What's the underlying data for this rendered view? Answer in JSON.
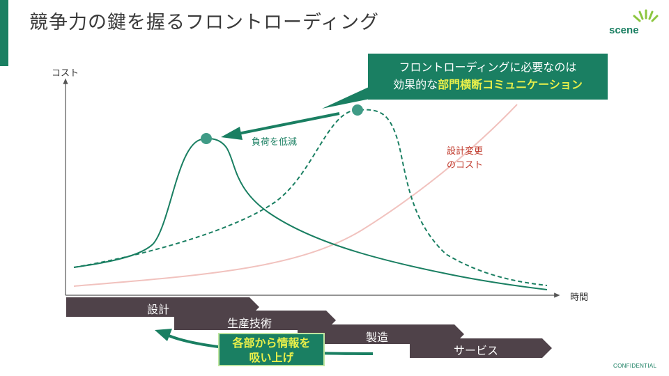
{
  "title": "競争力の鍵を握るフロントローディング",
  "logo": {
    "text": "scene"
  },
  "footer": {
    "confidential": "CONFIDENTIAL"
  },
  "callout": {
    "line1": "フロントローディングに必要なのは",
    "line2_prefix": "効果的な",
    "line2_highlight": "部門横断コミュニケーション"
  },
  "axes": {
    "y_label": "コスト",
    "x_label": "時間"
  },
  "annotations": {
    "reduce_load": "負荷を低減",
    "change_cost_line1": "設計変更",
    "change_cost_line2": "のコスト"
  },
  "phases": [
    "設計",
    "生産技術",
    "製造",
    "サービス"
  ],
  "feedback": {
    "line1": "各部から情報を",
    "line2": "吸い上げ"
  },
  "colors": {
    "brand_green": "#1a7f62",
    "phase_bar": "#4f4249",
    "highlight_yellow": "#eaf04a",
    "change_cost_line": "#f1c2be",
    "change_cost_text": "#c0392b"
  },
  "icons": {
    "logo": "sunburst-icon",
    "arrow": "arrow-left-icon"
  }
}
